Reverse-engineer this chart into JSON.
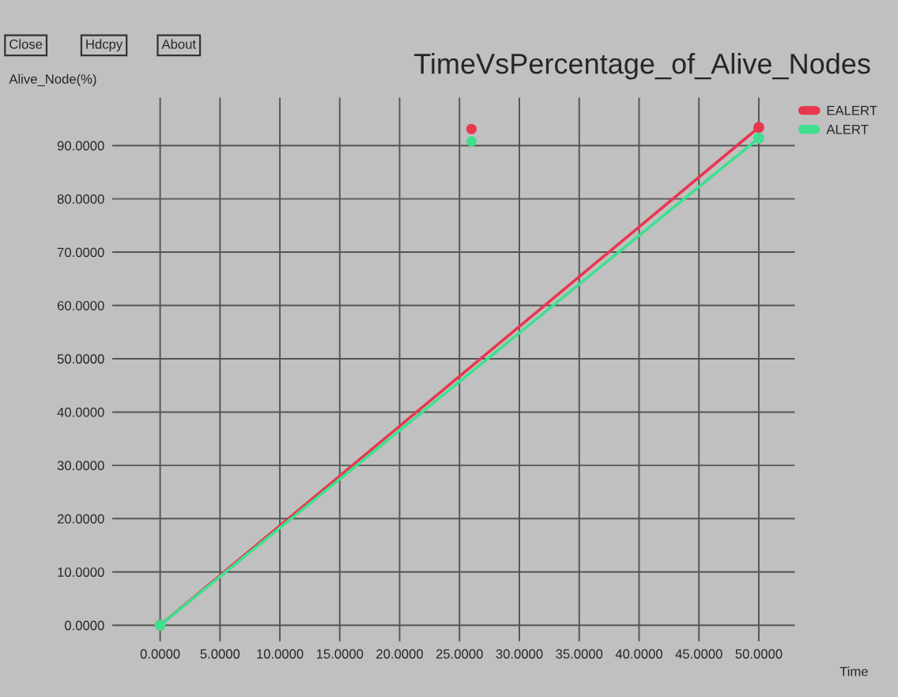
{
  "chart_data": {
    "type": "line",
    "title": "TimeVsPercentage_of_Alive_Nodes",
    "xlabel": "Time",
    "ylabel": "Alive_Node(%)",
    "annotations": [
      "Close",
      "Hdcpy",
      "About"
    ],
    "series": [
      {
        "name": "EALERT",
        "color": "#e8384f",
        "x": [
          0,
          50
        ],
        "values": [
          0,
          93.4
        ]
      },
      {
        "name": "ALERT",
        "color": "#3ee08f",
        "x": [
          0,
          50
        ],
        "values": [
          0,
          91.4
        ]
      },
      {
        "type": "scatter",
        "color": "#e8384f",
        "x": [
          26
        ],
        "values": [
          93.1
        ]
      },
      {
        "type": "scatter",
        "color": "#3ee08f",
        "x": [
          26
        ],
        "values": [
          90.8
        ]
      }
    ],
    "xlim": [
      -4,
      53
    ],
    "ylim": [
      -3,
      99
    ],
    "xticks": [
      {
        "value": 0,
        "label": "0.0000"
      },
      {
        "value": 5,
        "label": "5.0000"
      },
      {
        "value": 10,
        "label": "10.0000"
      },
      {
        "value": 15,
        "label": "15.0000"
      },
      {
        "value": 20,
        "label": "20.0000"
      },
      {
        "value": 25,
        "label": "25.0000"
      },
      {
        "value": 30,
        "label": "30.0000"
      },
      {
        "value": 35,
        "label": "35.0000"
      },
      {
        "value": 40,
        "label": "40.0000"
      },
      {
        "value": 45,
        "label": "45.0000"
      },
      {
        "value": 50,
        "label": "50.0000"
      }
    ],
    "yticks": [
      {
        "value": 0,
        "label": "0.0000"
      },
      {
        "value": 10,
        "label": "10.0000"
      },
      {
        "value": 20,
        "label": "20.0000"
      },
      {
        "value": 30,
        "label": "30.0000"
      },
      {
        "value": 40,
        "label": "40.0000"
      },
      {
        "value": 50,
        "label": "50.0000"
      },
      {
        "value": 60,
        "label": "60.0000"
      },
      {
        "value": 70,
        "label": "70.0000"
      },
      {
        "value": 80,
        "label": "80.0000"
      },
      {
        "value": 90,
        "label": "90.0000"
      }
    ],
    "grid": true,
    "legend": "top right",
    "marker": "circle"
  }
}
